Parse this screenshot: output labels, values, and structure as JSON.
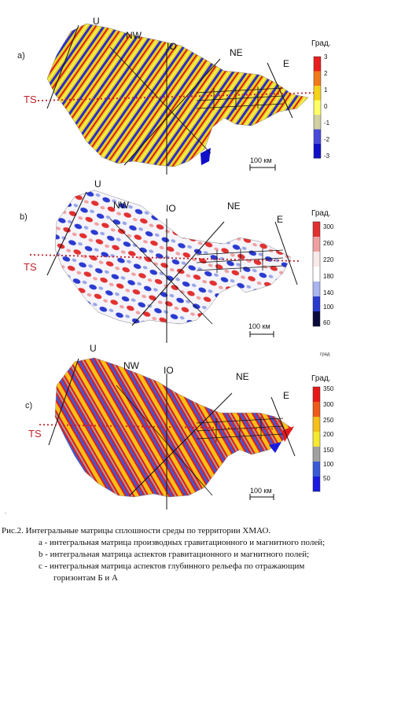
{
  "panels": [
    {
      "letter": "a)",
      "labels": {
        "u": "U",
        "nw": "NW",
        "io": "IO",
        "ne": "NE",
        "e": "E",
        "ts": "TS"
      },
      "colorbar": {
        "title": "Град.",
        "ticks": [
          "3",
          "2",
          "1",
          "0",
          "-1",
          "-2",
          "-3"
        ],
        "colors": [
          "#e81e1e",
          "#f07a1a",
          "#f5d21a",
          "#ffff66",
          "#d0d0a0",
          "#4a4ad8",
          "#1010c8"
        ]
      },
      "scale": "100 км"
    },
    {
      "letter": "b)",
      "labels": {
        "u": "U",
        "nw": "NW",
        "io": "IO",
        "ne": "NE",
        "e": "E",
        "ts": "TS"
      },
      "colorbar": {
        "title": "Град.",
        "ticks": [
          "300",
          "260",
          "220",
          "180",
          "140",
          "100",
          "60"
        ],
        "colors": [
          "#e23030",
          "#f0a0a0",
          "#fbeaea",
          "#ffffff",
          "#aab4ee",
          "#2a3ad0",
          "#0b0b3a"
        ]
      },
      "scale": "100 км"
    },
    {
      "letter": "c)",
      "labels": {
        "u": "U",
        "nw": "NW",
        "io": "IO",
        "ne": "NE",
        "e": "E",
        "ts": "TS"
      },
      "colorbar": {
        "title": "Град.",
        "ticks": [
          "350",
          "300",
          "250",
          "200",
          "150",
          "100",
          "50"
        ],
        "colors": [
          "#e81818",
          "#f05a18",
          "#f5c018",
          "#f5e830",
          "#a0a0a0",
          "#3a5ad8",
          "#1a1ae0"
        ]
      },
      "scale": "100 км"
    }
  ],
  "extra_label": "град",
  "dot_mark": "-",
  "caption": {
    "title": "Рис.2.  Интегральные матрицы сплошности среды по территории ХМАО.",
    "items": [
      "a - интегральная матрица производных гравитационного и магнитного полей;",
      "b - интегральная матрица аспектов гравитационного и магнитного полей;",
      "c - интегральная матрица аспектов глубинного рельефа по отражающим"
    ],
    "continuation": "горизонтам Б и А"
  }
}
